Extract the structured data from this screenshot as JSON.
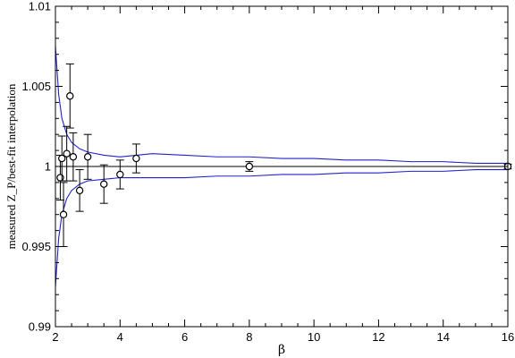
{
  "chart_data": {
    "type": "scatter",
    "title": "",
    "xlabel": "β",
    "ylabel": "measured Z_P/best-fit interpolation",
    "xlim": [
      2,
      16
    ],
    "ylim": [
      0.99,
      1.01
    ],
    "xticks": [
      2,
      4,
      6,
      8,
      10,
      12,
      14,
      16
    ],
    "yticks": [
      0.99,
      0.995,
      1,
      1.005,
      1.01
    ],
    "xtick_labels": [
      "2",
      "4",
      "6",
      "8",
      "10",
      "12",
      "14",
      "16"
    ],
    "ytick_labels": [
      "0.99",
      "0.995",
      "1",
      "1.005",
      "1.01"
    ],
    "grid": false,
    "reference_line": {
      "y": 1
    },
    "points": [
      {
        "x": 2.15,
        "y": 0.9993,
        "err": 0.0014
      },
      {
        "x": 2.2,
        "y": 1.0005,
        "err": 0.0014
      },
      {
        "x": 2.25,
        "y": 0.997,
        "err": 0.002
      },
      {
        "x": 2.35,
        "y": 1.0008,
        "err": 0.0017
      },
      {
        "x": 2.45,
        "y": 1.0044,
        "err": 0.002
      },
      {
        "x": 2.55,
        "y": 1.0006,
        "err": 0.0015
      },
      {
        "x": 2.75,
        "y": 0.9985,
        "err": 0.0013
      },
      {
        "x": 3.0,
        "y": 1.0006,
        "err": 0.0014
      },
      {
        "x": 3.5,
        "y": 0.9989,
        "err": 0.0012
      },
      {
        "x": 4.0,
        "y": 0.9995,
        "err": 0.0009
      },
      {
        "x": 4.5,
        "y": 1.0005,
        "err": 0.0009
      },
      {
        "x": 8.0,
        "y": 1.0,
        "err": 0.0003
      },
      {
        "x": 16.0,
        "y": 1.0,
        "err": 0.00015
      }
    ],
    "band": {
      "color": "#2222cc",
      "upper": [
        [
          2.0,
          1.0075
        ],
        [
          2.1,
          1.0045
        ],
        [
          2.2,
          1.003
        ],
        [
          2.35,
          1.002
        ],
        [
          2.5,
          1.0015
        ],
        [
          2.75,
          1.0011
        ],
        [
          3.0,
          1.0009
        ],
        [
          3.5,
          1.0007
        ],
        [
          4.0,
          1.0006
        ],
        [
          4.5,
          1.0007
        ],
        [
          5.0,
          1.0008
        ],
        [
          6.0,
          1.0007
        ],
        [
          7.0,
          1.0006
        ],
        [
          8.0,
          1.0006
        ],
        [
          9.0,
          1.0005
        ],
        [
          10.0,
          1.0005
        ],
        [
          11.0,
          1.0004
        ],
        [
          12.0,
          1.0004
        ],
        [
          13.0,
          1.0003
        ],
        [
          14.0,
          1.0003
        ],
        [
          15.0,
          1.0002
        ],
        [
          16.0,
          1.0002
        ]
      ],
      "lower": [
        [
          2.0,
          0.9925
        ],
        [
          2.1,
          0.9955
        ],
        [
          2.2,
          0.997
        ],
        [
          2.35,
          0.998
        ],
        [
          2.5,
          0.9985
        ],
        [
          2.75,
          0.9989
        ],
        [
          3.0,
          0.9991
        ],
        [
          3.5,
          0.9992
        ],
        [
          4.0,
          0.9993
        ],
        [
          4.5,
          0.9993
        ],
        [
          5.0,
          0.9993
        ],
        [
          6.0,
          0.9993
        ],
        [
          7.0,
          0.9994
        ],
        [
          8.0,
          0.9994
        ],
        [
          9.0,
          0.9995
        ],
        [
          10.0,
          0.9995
        ],
        [
          11.0,
          0.9996
        ],
        [
          12.0,
          0.9996
        ],
        [
          13.0,
          0.9997
        ],
        [
          14.0,
          0.9997
        ],
        [
          15.0,
          0.9998
        ],
        [
          16.0,
          0.9998
        ]
      ]
    }
  }
}
